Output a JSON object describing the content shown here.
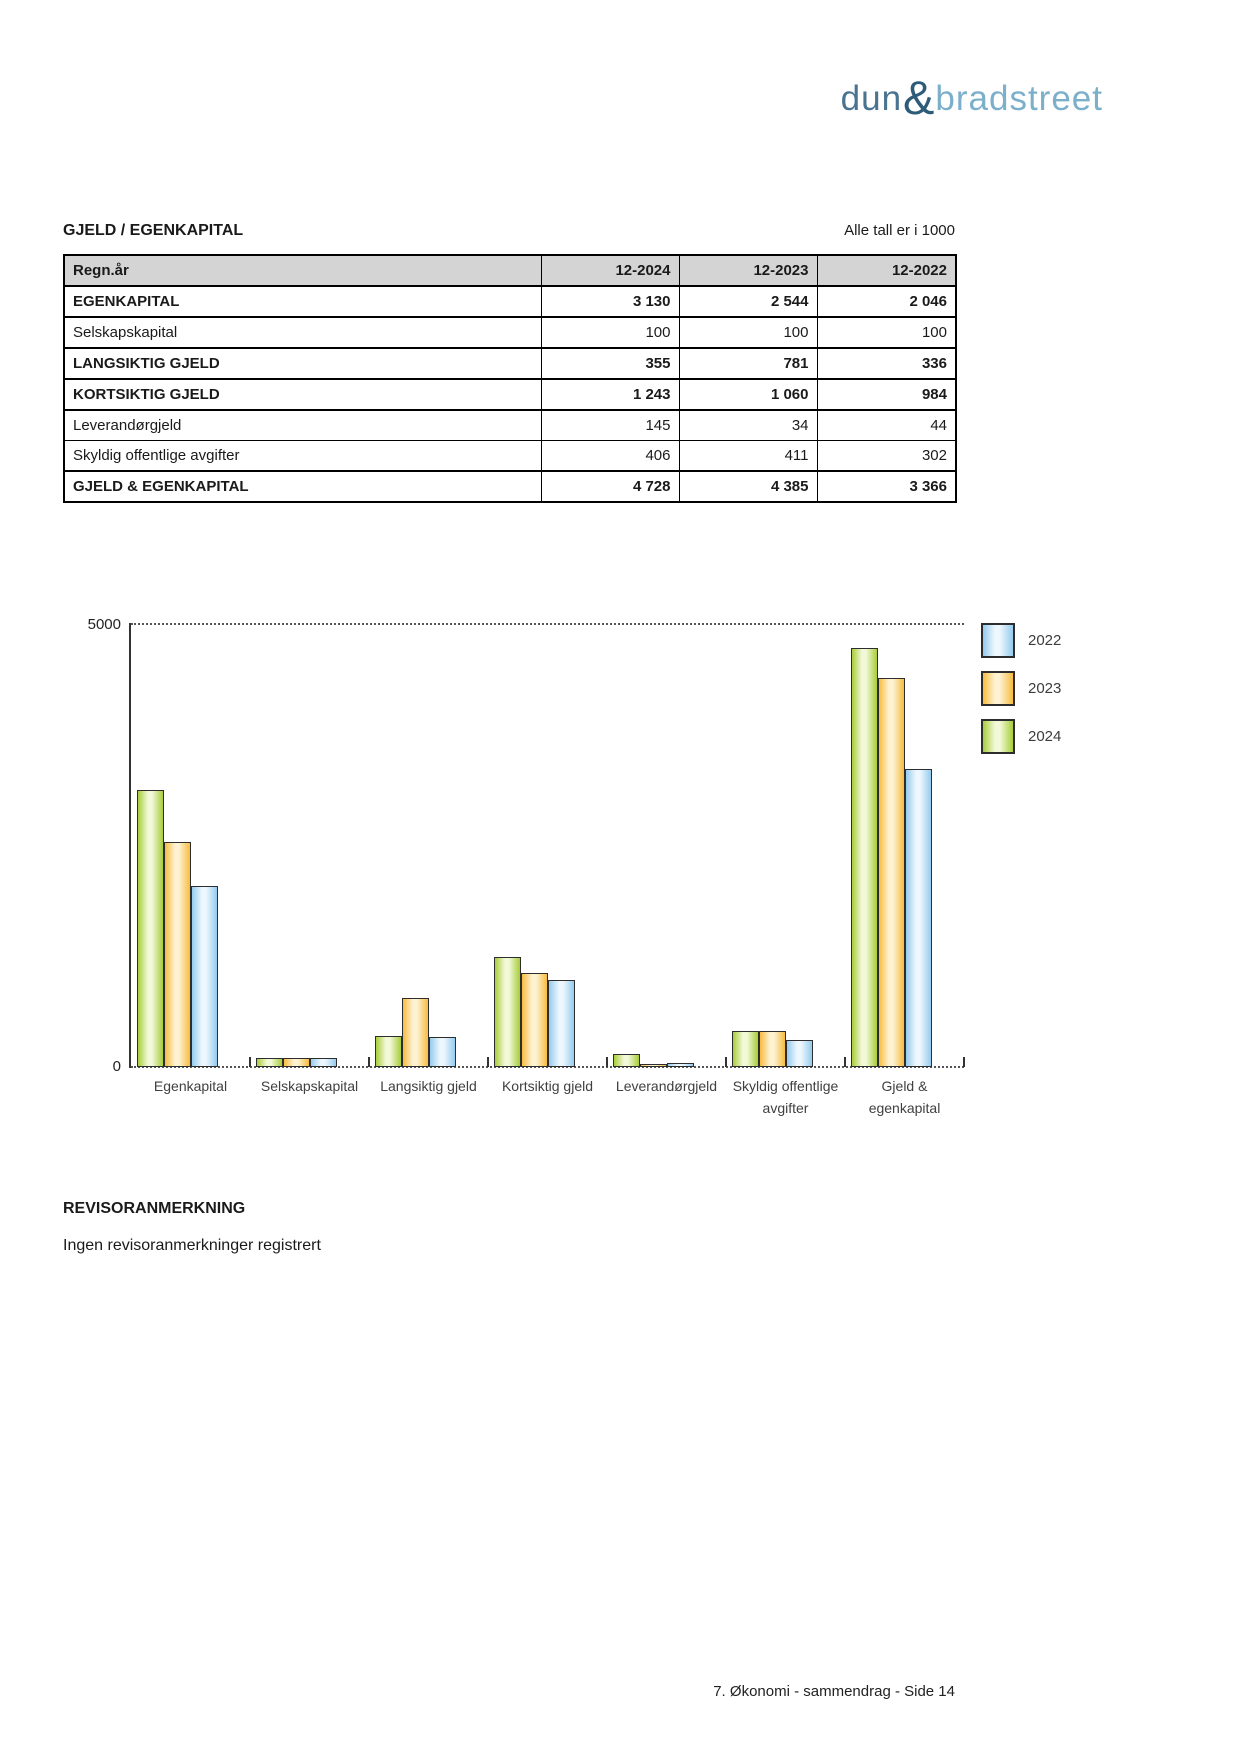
{
  "logo": {
    "part1": "dun",
    "amp": "&",
    "part2": "bradstreet"
  },
  "section": {
    "title": "GJELD / EGENKAPITAL",
    "note": "Alle tall er i 1000"
  },
  "table": {
    "header": {
      "label": "Regn.år",
      "c1": "12-2024",
      "c2": "12-2023",
      "c3": "12-2022"
    },
    "rows": [
      {
        "label": "EGENKAPITAL",
        "v1": "3 130",
        "v2": "2 544",
        "v3": "2 046"
      },
      {
        "label": "Selskapskapital",
        "v1": "100",
        "v2": "100",
        "v3": "100"
      },
      {
        "label": "LANGSIKTIG GJELD",
        "v1": "355",
        "v2": "781",
        "v3": "336"
      },
      {
        "label": "KORTSIKTIG GJELD",
        "v1": "1 243",
        "v2": "1 060",
        "v3": "984"
      },
      {
        "label": "Leverandørgjeld",
        "v1": "145",
        "v2": "34",
        "v3": "44"
      },
      {
        "label": "Skyldig offentlige avgifter",
        "v1": "406",
        "v2": "411",
        "v3": "302"
      },
      {
        "label": "GJELD & EGENKAPITAL",
        "v1": "4 728",
        "v2": "4 385",
        "v3": "3 366"
      }
    ]
  },
  "chart_data": {
    "type": "bar",
    "title": "",
    "categories": [
      "Egenkapital",
      "Selskapskapital",
      "Langsiktig gjeld",
      "Kortsiktig gjeld",
      "Leverandørgjeld",
      "Skyldig offentlige\navgifter",
      "Gjeld &\negenkapital"
    ],
    "series": [
      {
        "name": "2024",
        "values": [
          3130,
          100,
          355,
          1243,
          145,
          406,
          4728
        ],
        "edge_color": "#a8cd3a",
        "center_color": "#f2f9d8"
      },
      {
        "name": "2023",
        "values": [
          2544,
          100,
          781,
          1060,
          34,
          411,
          4385
        ],
        "edge_color": "#f8bc40",
        "center_color": "#fdf2d2"
      },
      {
        "name": "2022",
        "values": [
          2046,
          100,
          336,
          984,
          44,
          302,
          3366
        ],
        "edge_color": "#95cbee",
        "center_color": "#edf7fd"
      }
    ],
    "legend": [
      "2022",
      "2023",
      "2024"
    ],
    "legend_position": "top-right",
    "ylim": [
      0,
      5000
    ],
    "ytick_labels": [
      "5000",
      "0"
    ],
    "grid": "dotted line at y=5000 and dotted baseline at y=0"
  },
  "revisor": {
    "heading": "REVISORANMERKNING",
    "text": "Ingen revisoranmerkninger registrert"
  },
  "footer": {
    "text": "7. Økonomi - sammendrag - Side 14"
  }
}
